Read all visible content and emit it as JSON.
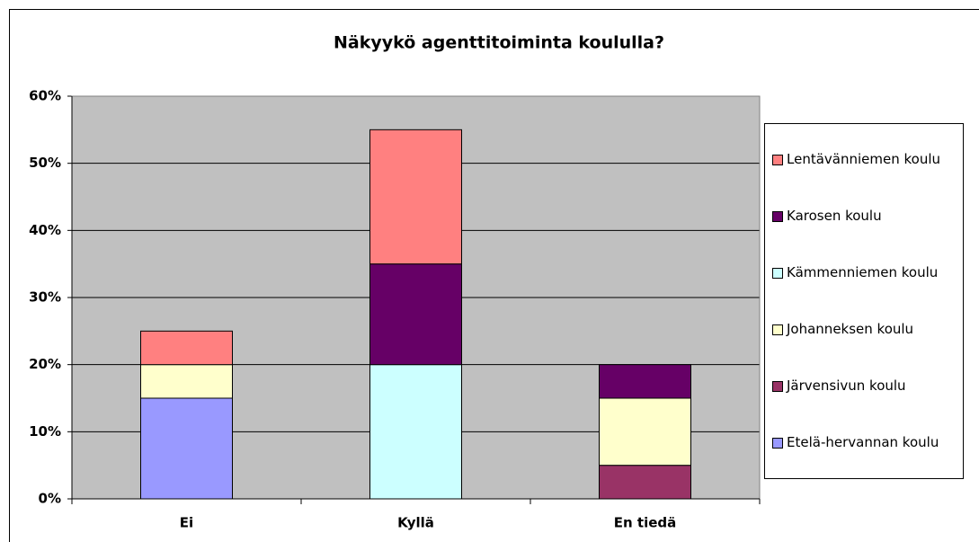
{
  "chart_data": {
    "type": "stacked_bar",
    "title": "Näkyykö agenttitoiminta koululla?",
    "categories": [
      "Ei",
      "Kyllä",
      "En tiedä"
    ],
    "series": [
      {
        "name": "Etelä-hervannan koulu",
        "color": "#9999ff",
        "values": [
          15,
          0,
          0
        ]
      },
      {
        "name": "Järvensivun koulu",
        "color": "#993366",
        "values": [
          0,
          0,
          5
        ]
      },
      {
        "name": "Johanneksen koulu",
        "color": "#ffffcc",
        "values": [
          5,
          0,
          10
        ]
      },
      {
        "name": "Kämmenniemen koulu",
        "color": "#ccffff",
        "values": [
          0,
          20,
          0
        ]
      },
      {
        "name": "Karosen koulu",
        "color": "#660066",
        "values": [
          0,
          15,
          5
        ]
      },
      {
        "name": "Lentävänniemen koulu",
        "color": "#ff8080",
        "values": [
          5,
          20,
          0
        ]
      }
    ],
    "ylim": [
      0,
      60
    ],
    "yticks": [
      {
        "value": 0,
        "label": "0%"
      },
      {
        "value": 10,
        "label": "10%"
      },
      {
        "value": 20,
        "label": "20%"
      },
      {
        "value": 30,
        "label": "30%"
      },
      {
        "value": 40,
        "label": "40%"
      },
      {
        "value": 50,
        "label": "50%"
      },
      {
        "value": 60,
        "label": "60%"
      }
    ],
    "grid": true,
    "legend": "right"
  }
}
